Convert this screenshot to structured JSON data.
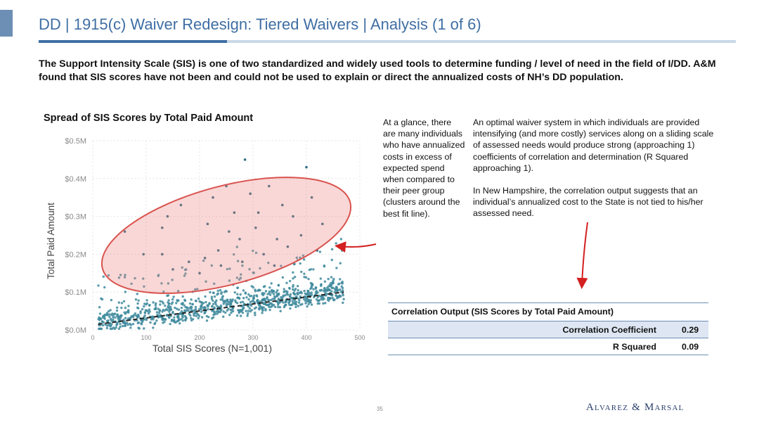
{
  "header": {
    "title": "DD | 1915(c) Waiver Redesign: Tiered Waivers | Analysis (1 of 6)"
  },
  "intro_text": "The Support Intensity Scale (SIS) is one of two standardized and widely used tools to determine funding / level of need in the field of I/DD. A&M found that SIS scores have not been and could not be used to explain or direct the annualized costs of NH’s DD population.",
  "chart_data": {
    "type": "scatter",
    "title": "Spread of SIS Scores by Total Paid Amount",
    "xlabel": "Total SIS Scores (N=1,001)",
    "ylabel": "Total Paid Amount",
    "xlim": [
      0,
      500
    ],
    "ylim": [
      0,
      0.5
    ],
    "x_ticks": [
      "0",
      "100",
      "200",
      "300",
      "400",
      "500"
    ],
    "y_ticks": [
      "$0.0M",
      "$0.1M",
      "$0.2M",
      "$0.3M",
      "$0.4M",
      "$0.5M"
    ],
    "n_points": 1001,
    "point_color": "#3e8a9c",
    "trend_line": {
      "x": [
        10,
        470
      ],
      "y": [
        0.015,
        0.1
      ]
    },
    "highlight_ellipse": {
      "cx": 250,
      "cy": 0.25,
      "rx": 240,
      "ry": 0.13,
      "color": "#d9534f"
    },
    "outliers": [
      [
        60,
        0.26
      ],
      [
        95,
        0.2
      ],
      [
        130,
        0.27
      ],
      [
        130,
        0.2
      ],
      [
        140,
        0.3
      ],
      [
        165,
        0.33
      ],
      [
        180,
        0.18
      ],
      [
        210,
        0.19
      ],
      [
        215,
        0.28
      ],
      [
        225,
        0.35
      ],
      [
        235,
        0.21
      ],
      [
        250,
        0.38
      ],
      [
        255,
        0.26
      ],
      [
        265,
        0.31
      ],
      [
        275,
        0.24
      ],
      [
        285,
        0.45
      ],
      [
        295,
        0.36
      ],
      [
        305,
        0.27
      ],
      [
        310,
        0.31
      ],
      [
        320,
        0.2
      ],
      [
        330,
        0.38
      ],
      [
        345,
        0.24
      ],
      [
        355,
        0.33
      ],
      [
        365,
        0.22
      ],
      [
        375,
        0.3
      ],
      [
        390,
        0.25
      ],
      [
        400,
        0.43
      ],
      [
        410,
        0.35
      ],
      [
        420,
        0.21
      ],
      [
        430,
        0.28
      ],
      [
        280,
        0.18
      ],
      [
        240,
        0.17
      ],
      [
        200,
        0.15
      ],
      [
        340,
        0.17
      ],
      [
        150,
        0.16
      ]
    ]
  },
  "note_left": "At a glance, there are many individuals who have annualized costs in excess of expected spend when compared to their peer group (clusters around the best fit line).",
  "note_right": [
    "An optimal waiver system in which individuals are provided intensifying (and more costly) services along on a sliding scale of assessed needs would produce strong (approaching 1) coefficients of correlation and determination (R Squared approaching 1).",
    "In New Hampshire, the correlation output suggests that an individual’s annualized cost to the State is not tied to his/her assessed need."
  ],
  "correlation": {
    "title": "Correlation Output (SIS Scores by Total Paid Amount)",
    "rows": [
      {
        "label": "Correlation Coefficient",
        "value": "0.29"
      },
      {
        "label": "R Squared",
        "value": "0.09"
      }
    ]
  },
  "footer": {
    "page_number": "35",
    "logo": "Alvarez & Marsal"
  }
}
